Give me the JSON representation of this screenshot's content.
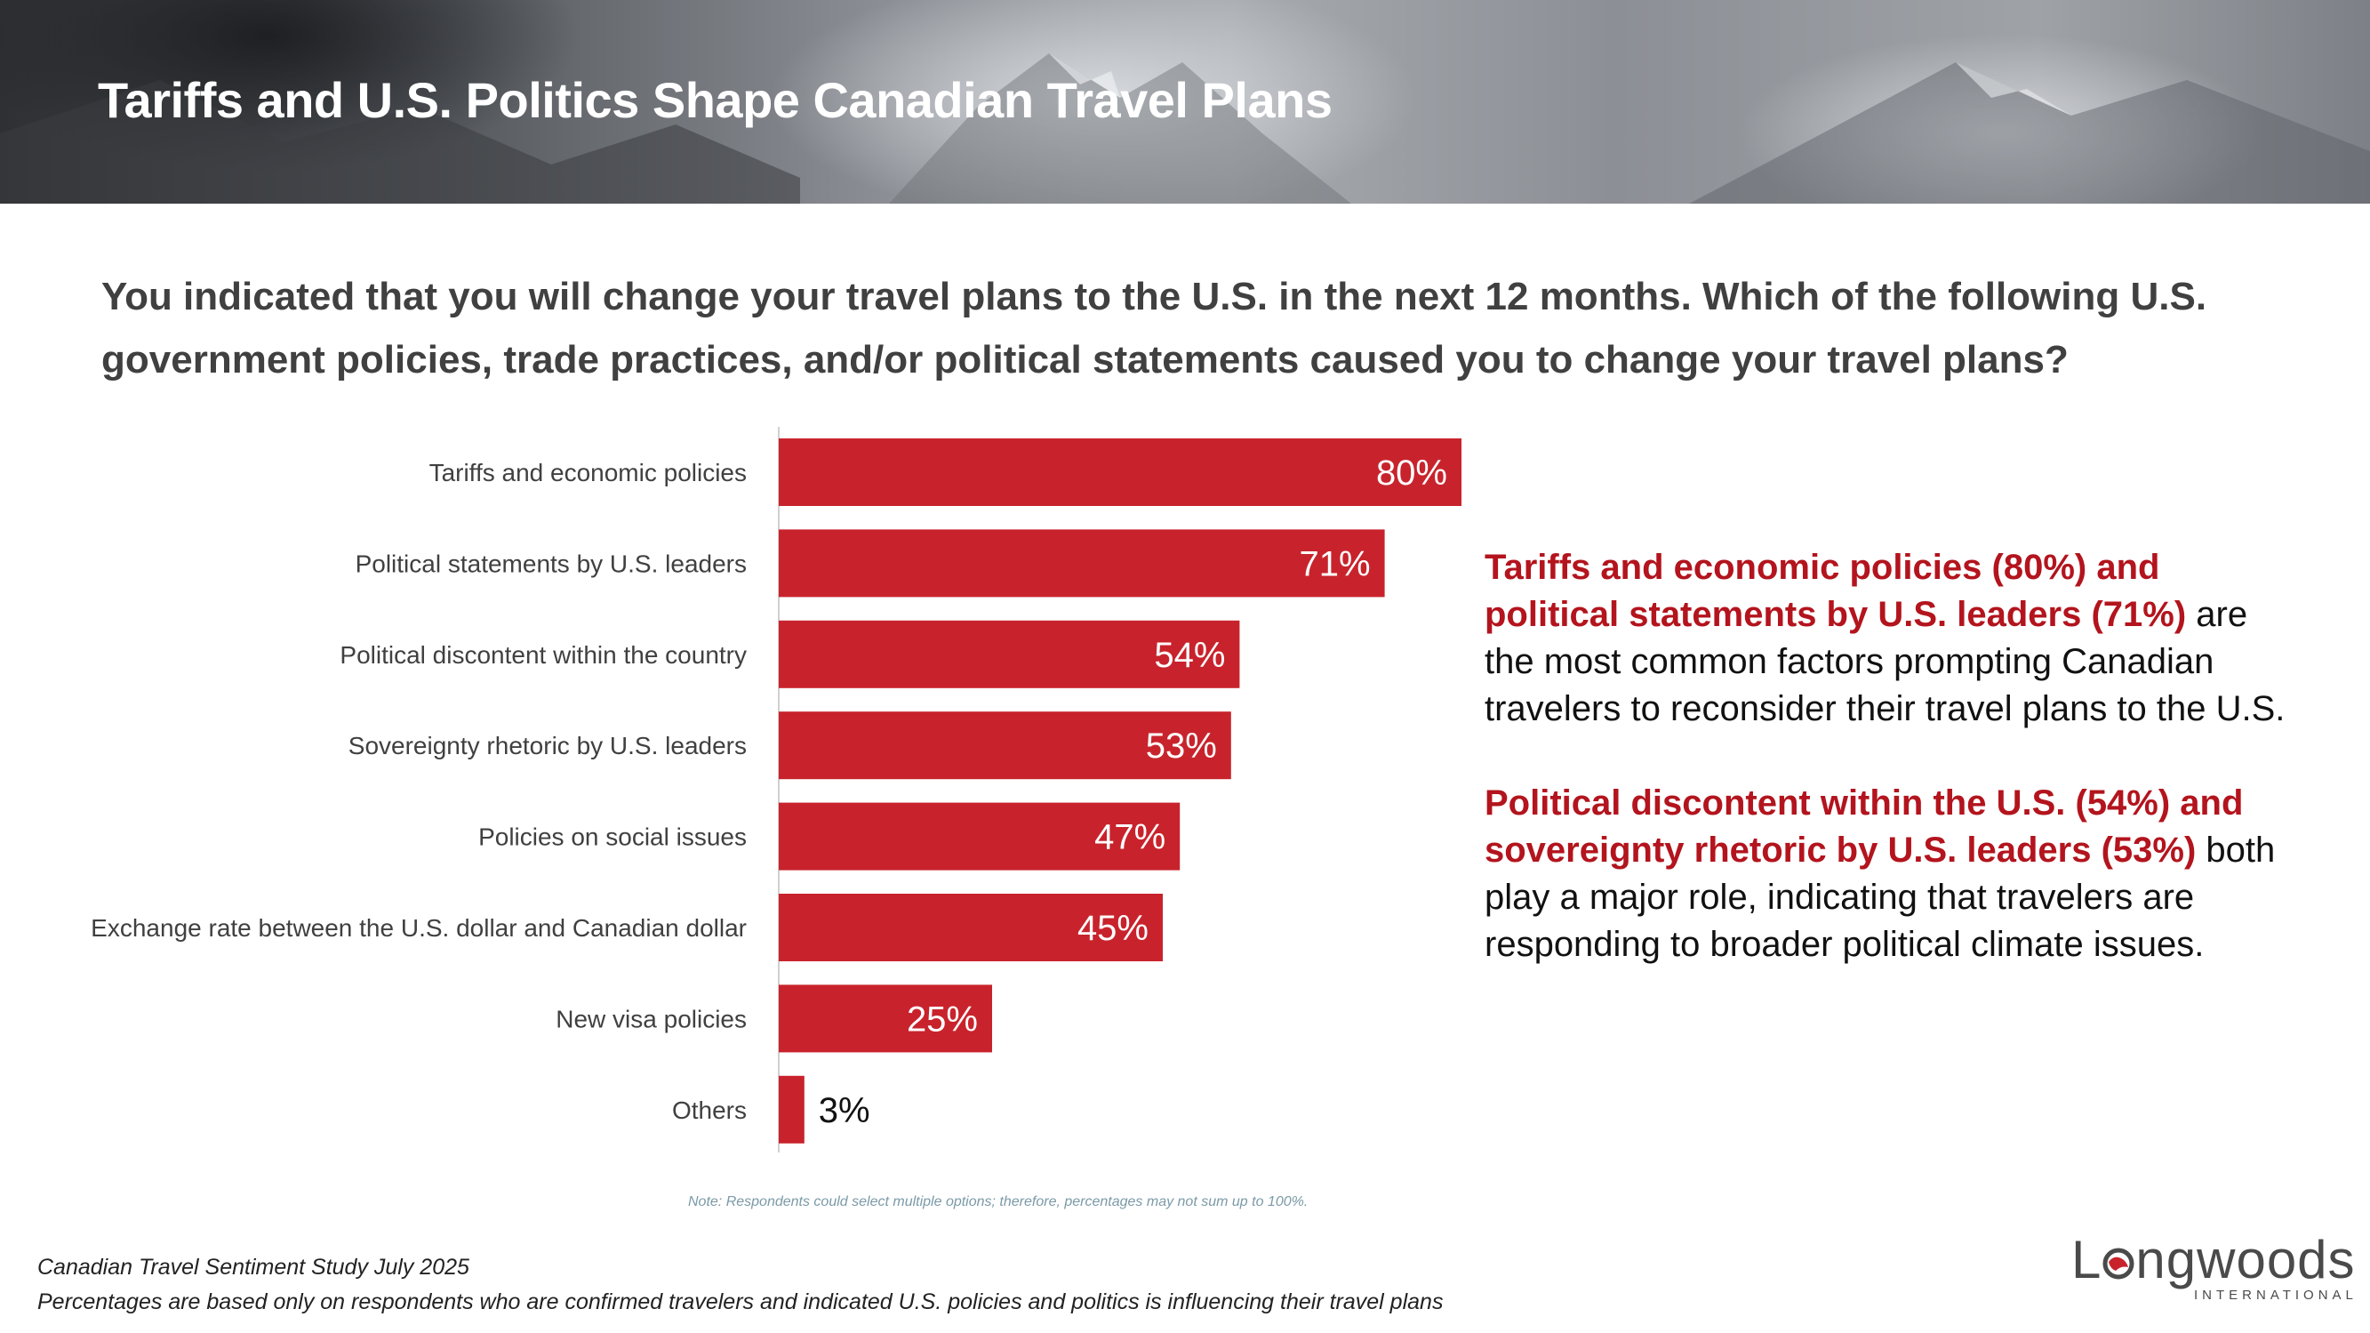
{
  "header": {
    "title": "Tariffs and U.S. Politics Shape Canadian Travel Plans"
  },
  "question": "You indicated that you will change your travel plans to the U.S. in the next 12 months. Which of the following U.S. government policies, trade practices, and/or political statements caused you to change your travel plans?",
  "chart_data": {
    "type": "bar",
    "orientation": "horizontal",
    "categories": [
      "Tariffs and economic policies",
      "Political statements by U.S. leaders",
      "Political discontent within the country",
      "Sovereignty rhetoric by U.S. leaders",
      "Policies on social issues",
      "Exchange rate between the U.S. dollar and Canadian dollar",
      "New visa policies",
      "Others"
    ],
    "values": [
      80,
      71,
      54,
      53,
      47,
      45,
      25,
      3
    ],
    "value_labels": [
      "80%",
      "71%",
      "54%",
      "53%",
      "47%",
      "45%",
      "25%",
      "3%"
    ],
    "unit": "%",
    "xlim": [
      0,
      100
    ],
    "grid": false,
    "bar_color": "#c8232c"
  },
  "note": "Note: Respondents could select multiple options; therefore, percentages may not sum up to 100%.",
  "insights": {
    "p1_highlight": "Tariffs and economic policies (80%) and political statements by U.S. leaders (71%)",
    "p1_rest": " are the most common factors prompting Canadian travelers to reconsider their travel plans to the U.S.",
    "p2_highlight": "Political discontent within the U.S. (54%) and sovereignty rhetoric by U.S. leaders (53%)",
    "p2_rest": " both play a major role, indicating that travelers are responding to broader political climate issues."
  },
  "footer": {
    "source_line1": "Canadian Travel Sentiment Study July 2025",
    "source_line2": "Percentages are based only on respondents who are confirmed travelers and indicated U.S. policies and politics is influencing their travel plans"
  },
  "logo": {
    "wordmark_start": "L",
    "wordmark_end": "ngwoods",
    "subtitle": "INTERNATIONAL",
    "icon": "globe-o-icon"
  },
  "colors": {
    "accent_red": "#c8232c",
    "highlight_red": "#b3141d",
    "question_gray": "#404040"
  }
}
